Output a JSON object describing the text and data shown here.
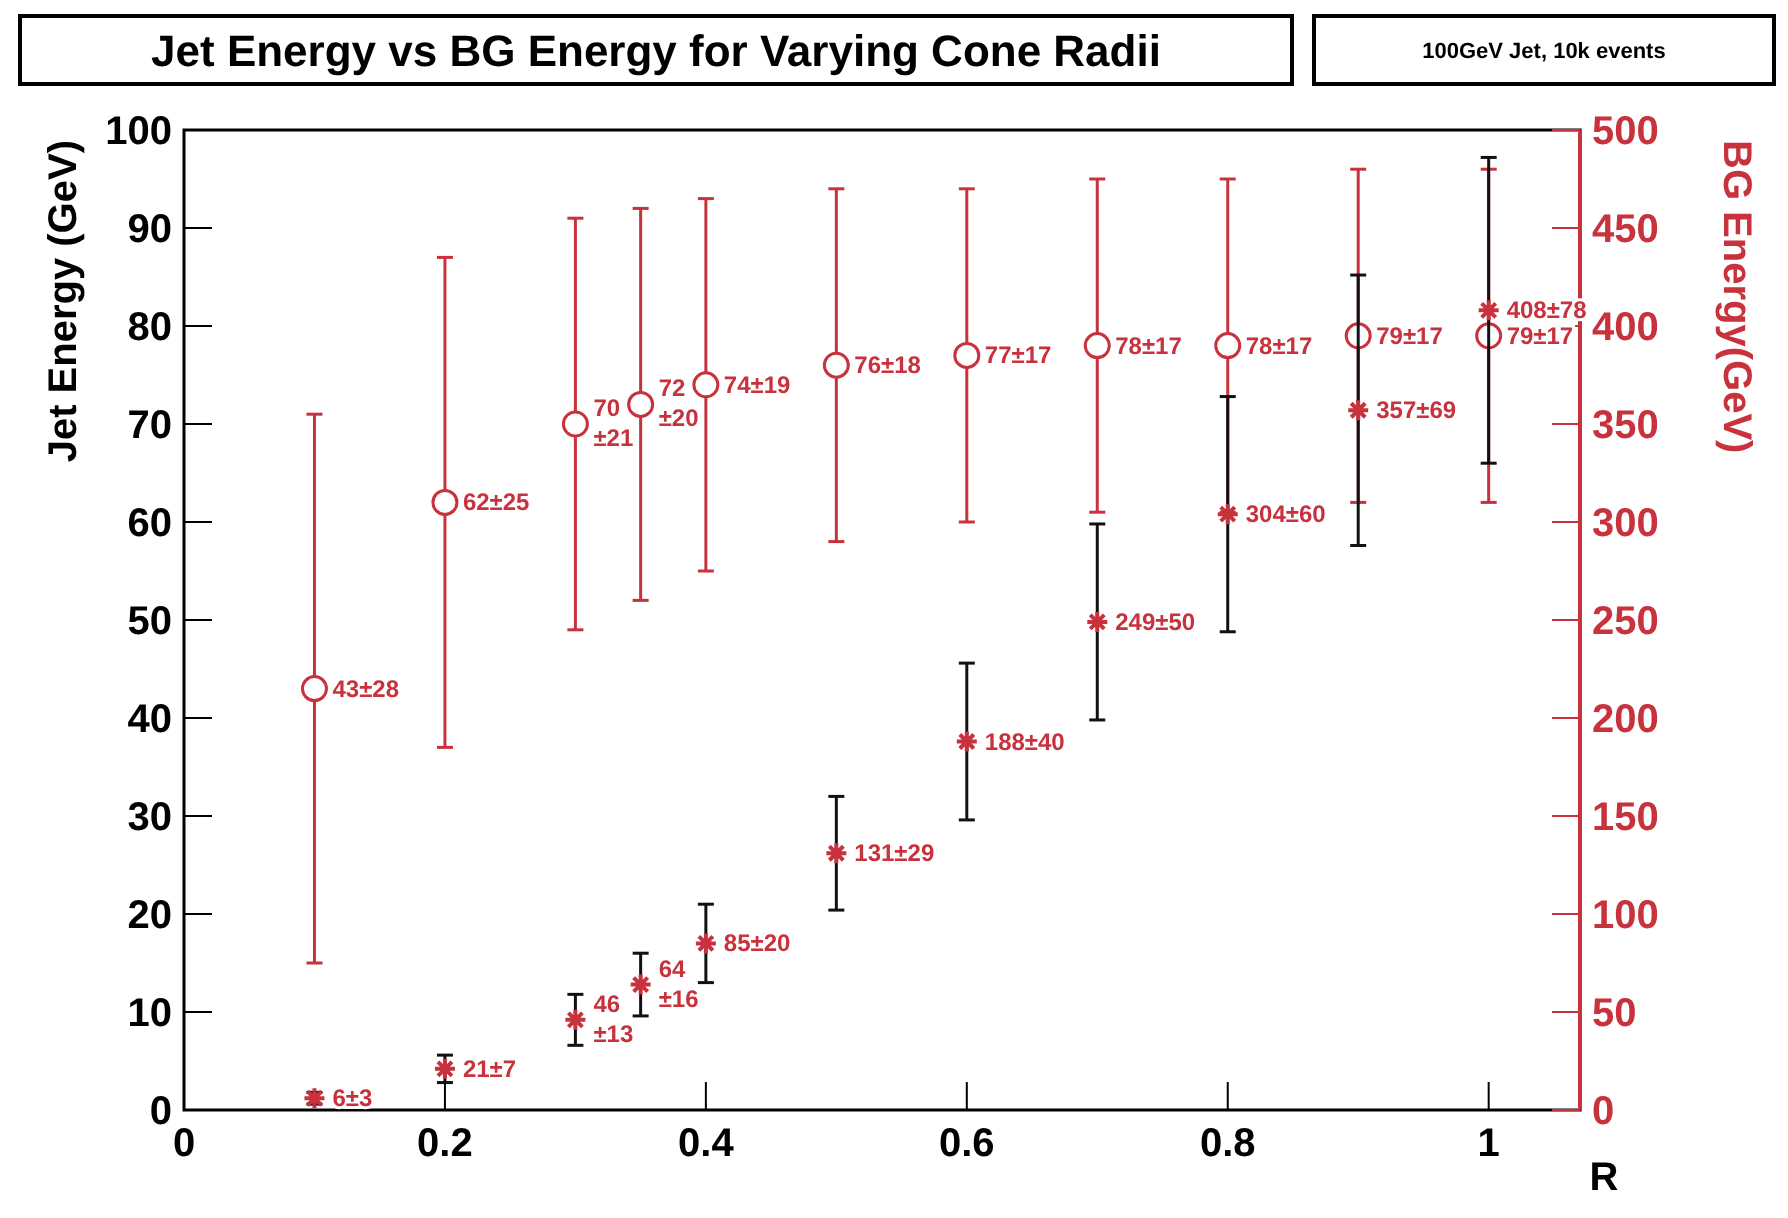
{
  "chart_data": {
    "type": "scatter",
    "title": "Jet Energy vs BG Energy for Varying Cone Radii",
    "xlabel": "R",
    "ylabel": "Jet Energy (GeV)",
    "y2label": "BG Energy(GeV)",
    "annotations": [
      "100GeV Jet, 10k events"
    ],
    "x": [
      0.1,
      0.2,
      0.3,
      0.35,
      0.4,
      0.5,
      0.6,
      0.7,
      0.8,
      0.9,
      1.0
    ],
    "xlim": [
      0,
      1.07
    ],
    "xticks": [
      0,
      0.2,
      0.4,
      0.6,
      0.8,
      1
    ],
    "ylim": [
      0,
      100
    ],
    "yticks": [
      0,
      10,
      20,
      30,
      40,
      50,
      60,
      70,
      80,
      90,
      100
    ],
    "y2lim": [
      0,
      500
    ],
    "y2ticks": [
      0,
      50,
      100,
      150,
      200,
      250,
      300,
      350,
      400,
      450,
      500
    ],
    "series": [
      {
        "color": "#c8323c",
        "marker": "circle",
        "values": [
          43,
          62,
          70,
          72,
          74,
          76,
          77,
          78,
          78,
          79,
          79
        ],
        "errors": [
          28,
          25,
          21,
          20,
          19,
          18,
          17,
          17,
          17,
          17,
          17
        ],
        "value_labels": [
          "43±28",
          "62±25",
          "70±21",
          "72±20",
          "74±19",
          "76±18",
          "77±17",
          "78±17",
          "78±17",
          "79±17",
          "79±17"
        ]
      },
      {
        "color": "#c8323c",
        "marker": "cross",
        "axis": "y2",
        "values": [
          6,
          21,
          46,
          64,
          85,
          131,
          188,
          249,
          304,
          357,
          408
        ],
        "errors": [
          3,
          7,
          13,
          16,
          20,
          29,
          40,
          50,
          60,
          69,
          78
        ],
        "value_labels": [
          "6±3",
          "21±7",
          "46±13",
          "64±16",
          "85±20",
          "131±29",
          "188±40",
          "249±50",
          "304±60",
          "357±69",
          "408±78"
        ]
      }
    ]
  }
}
